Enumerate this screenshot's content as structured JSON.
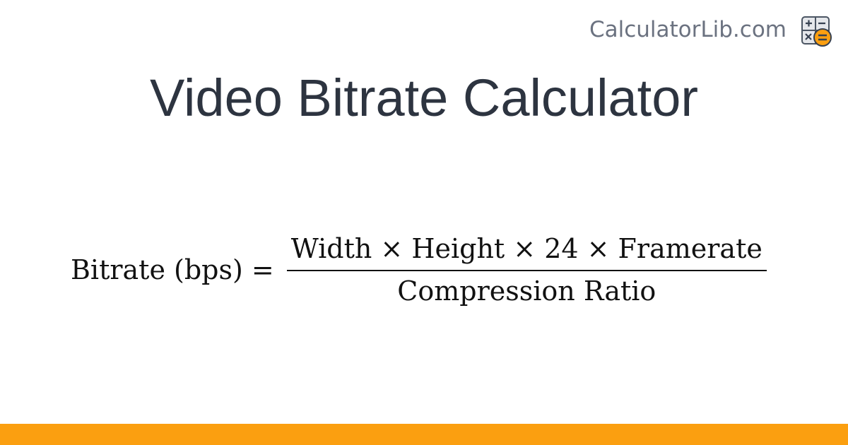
{
  "brand": {
    "name": "CalculatorLib.com",
    "accent": "#fb9f10"
  },
  "title": "Video Bitrate Calculator",
  "formula": {
    "lhs": "Bitrate (bps) =",
    "numerator": "Width × Height × 24 × Framerate",
    "denominator": "Compression Ratio"
  }
}
